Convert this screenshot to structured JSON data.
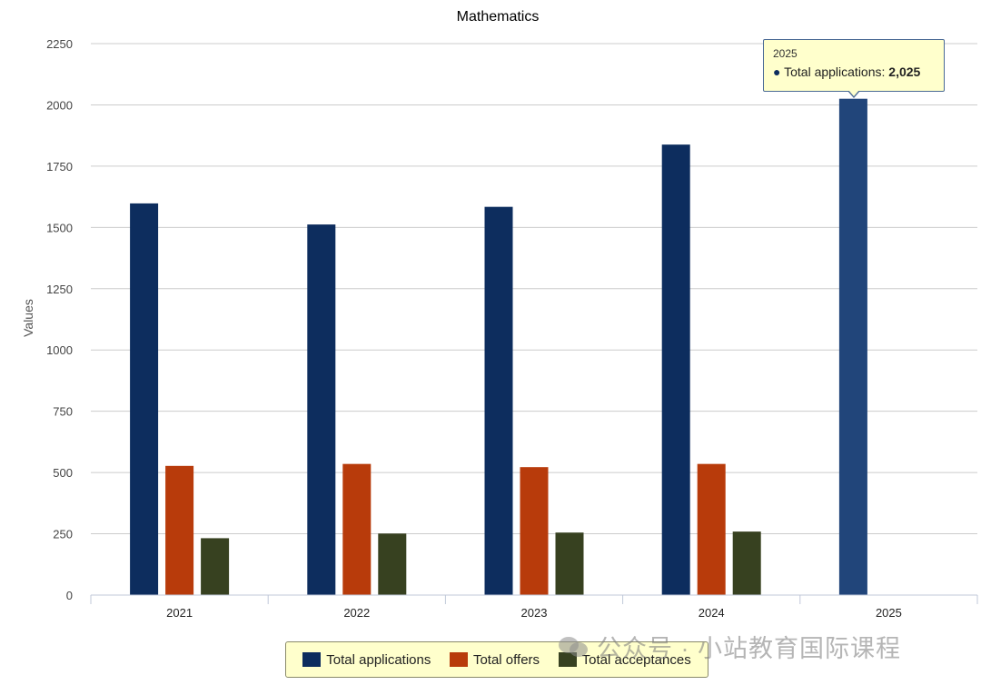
{
  "chart_data": {
    "type": "bar",
    "title": "Mathematics",
    "ylabel": "Values",
    "xlabel": "",
    "categories": [
      "2021",
      "2022",
      "2023",
      "2024",
      "2025"
    ],
    "ylim": [
      0,
      2250
    ],
    "yticks": [
      0,
      250,
      500,
      750,
      1000,
      1250,
      1500,
      1750,
      2000,
      2250
    ],
    "grid": true,
    "legend_position": "bottom",
    "series": [
      {
        "name": "Total applications",
        "color": "#0d2d5e",
        "values": [
          1598,
          1512,
          1584,
          1838,
          2025
        ]
      },
      {
        "name": "Total offers",
        "color": "#b83b0b",
        "values": [
          527,
          535,
          522,
          535,
          null
        ]
      },
      {
        "name": "Total acceptances",
        "color": "#374120",
        "values": [
          232,
          251,
          255,
          259,
          null
        ]
      }
    ],
    "highlight_color": "#21457a"
  },
  "tooltip": {
    "header": "2025",
    "bullet": "●",
    "label": "Total applications:",
    "value": "2,025"
  },
  "watermark": {
    "text": "公众号 · 小站教育国际课程"
  }
}
